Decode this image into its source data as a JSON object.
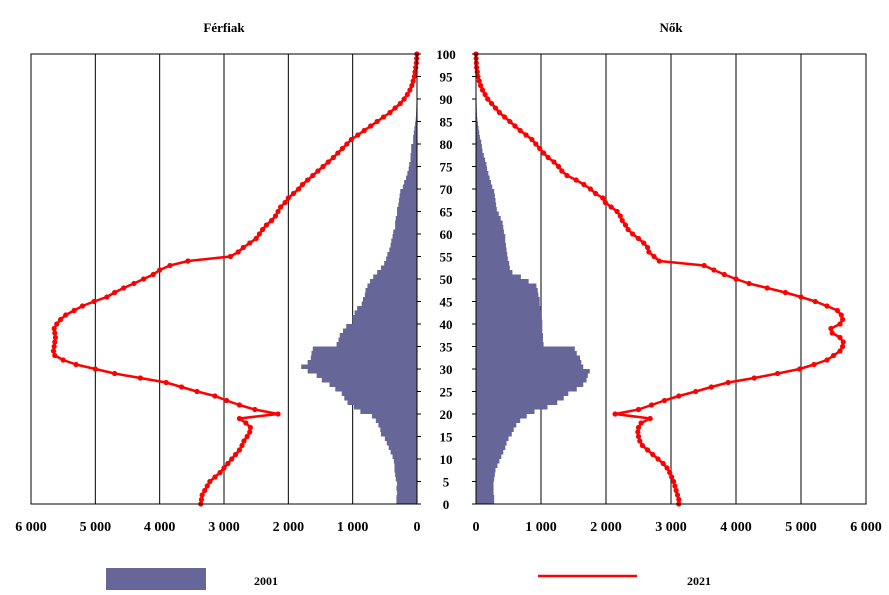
{
  "chart_data": {
    "type": "population-pyramid",
    "panels": [
      {
        "title": "Férfiak",
        "side": "left"
      },
      {
        "title": "Nők",
        "side": "right"
      }
    ],
    "x_ticks_left": [
      "6 000",
      "5 000",
      "4 000",
      "3 000",
      "2 000",
      "1 000",
      "0"
    ],
    "x_ticks_right": [
      "0",
      "1 000",
      "2 000",
      "3 000",
      "4 000",
      "5 000",
      "6 000"
    ],
    "xlim": [
      0,
      6000
    ],
    "age_ticks": [
      "0",
      "5",
      "10",
      "15",
      "20",
      "25",
      "30",
      "35",
      "40",
      "45",
      "50",
      "55",
      "60",
      "65",
      "70",
      "75",
      "80",
      "85",
      "90",
      "95",
      "100"
    ],
    "ylim": [
      0,
      100
    ],
    "grid": "vertical",
    "legend": [
      {
        "label": "2001",
        "kind": "bar",
        "color": "#666699"
      },
      {
        "label": "2021",
        "kind": "line",
        "color": "#ff0000"
      }
    ],
    "series": [
      {
        "name": "2001",
        "kind": "bar",
        "color": "#666699",
        "ages": [
          0,
          1,
          2,
          3,
          4,
          5,
          6,
          7,
          8,
          9,
          10,
          11,
          12,
          13,
          14,
          15,
          16,
          17,
          18,
          19,
          20,
          21,
          22,
          23,
          24,
          25,
          26,
          27,
          28,
          29,
          30,
          31,
          32,
          33,
          34,
          35,
          36,
          37,
          38,
          39,
          40,
          41,
          42,
          43,
          44,
          45,
          46,
          47,
          48,
          49,
          50,
          51,
          52,
          53,
          54,
          55,
          56,
          57,
          58,
          59,
          60,
          61,
          62,
          63,
          64,
          65,
          66,
          67,
          68,
          69,
          70,
          71,
          72,
          73,
          74,
          75,
          76,
          77,
          78,
          79,
          80,
          81,
          82,
          83,
          84,
          85,
          86,
          87,
          88,
          89,
          90,
          91,
          92,
          93,
          94,
          95,
          96,
          97,
          98,
          99,
          100
        ],
        "male": [
          320,
          320,
          310,
          320,
          310,
          330,
          340,
          350,
          350,
          360,
          380,
          410,
          440,
          470,
          500,
          560,
          570,
          600,
          640,
          700,
          880,
          980,
          1080,
          1130,
          1170,
          1270,
          1360,
          1480,
          1560,
          1700,
          1800,
          1700,
          1650,
          1640,
          1620,
          1250,
          1220,
          1200,
          1150,
          1100,
          1000,
          1000,
          970,
          930,
          860,
          840,
          810,
          800,
          770,
          730,
          680,
          620,
          560,
          510,
          480,
          460,
          430,
          410,
          400,
          380,
          370,
          340,
          340,
          330,
          310,
          310,
          290,
          280,
          270,
          260,
          220,
          200,
          170,
          150,
          130,
          120,
          100,
          100,
          90,
          90,
          60,
          60,
          50,
          40,
          30,
          20,
          15,
          12,
          10,
          8,
          6,
          4,
          3,
          2,
          1,
          1,
          0,
          0,
          0,
          0,
          0
        ],
        "female": [
          280,
          280,
          270,
          270,
          270,
          280,
          290,
          300,
          330,
          360,
          390,
          420,
          450,
          470,
          500,
          550,
          580,
          620,
          680,
          780,
          900,
          1100,
          1250,
          1350,
          1420,
          1550,
          1650,
          1700,
          1720,
          1750,
          1650,
          1620,
          1600,
          1550,
          1520,
          1040,
          1030,
          1030,
          1020,
          1020,
          1020,
          1000,
          1000,
          990,
          980,
          980,
          960,
          950,
          930,
          810,
          690,
          560,
          520,
          510,
          490,
          480,
          470,
          460,
          450,
          450,
          430,
          420,
          410,
          380,
          350,
          320,
          310,
          300,
          290,
          280,
          250,
          230,
          210,
          190,
          170,
          160,
          140,
          120,
          100,
          90,
          80,
          60,
          50,
          40,
          30,
          20,
          15,
          12,
          10,
          8,
          6,
          4,
          3,
          2,
          1,
          1,
          0,
          0,
          0,
          0,
          0
        ]
      },
      {
        "name": "2021",
        "kind": "line",
        "color": "#ff0000",
        "ages": [
          0,
          1,
          2,
          3,
          4,
          5,
          6,
          7,
          8,
          9,
          10,
          11,
          12,
          13,
          14,
          15,
          16,
          17,
          18,
          19,
          20,
          21,
          22,
          23,
          24,
          25,
          26,
          27,
          28,
          29,
          30,
          31,
          32,
          33,
          34,
          35,
          36,
          37,
          38,
          39,
          40,
          41,
          42,
          43,
          44,
          45,
          46,
          47,
          48,
          49,
          50,
          51,
          52,
          53,
          54,
          55,
          56,
          57,
          58,
          59,
          60,
          61,
          62,
          63,
          64,
          65,
          66,
          67,
          68,
          69,
          70,
          71,
          72,
          73,
          74,
          75,
          76,
          77,
          78,
          79,
          80,
          81,
          82,
          83,
          84,
          85,
          86,
          87,
          88,
          89,
          90,
          91,
          92,
          93,
          94,
          95,
          96,
          97,
          98,
          99,
          100
        ],
        "male": [
          3360,
          3350,
          3340,
          3300,
          3260,
          3220,
          3140,
          3060,
          3000,
          2940,
          2880,
          2820,
          2760,
          2720,
          2690,
          2640,
          2600,
          2590,
          2660,
          2760,
          2160,
          2520,
          2760,
          2960,
          3140,
          3420,
          3660,
          3900,
          4300,
          4700,
          5000,
          5300,
          5500,
          5630,
          5650,
          5640,
          5630,
          5620,
          5630,
          5640,
          5600,
          5540,
          5460,
          5330,
          5200,
          5020,
          4820,
          4700,
          4560,
          4400,
          4250,
          4100,
          4000,
          3840,
          3560,
          2900,
          2780,
          2700,
          2600,
          2500,
          2450,
          2400,
          2340,
          2260,
          2200,
          2160,
          2120,
          2050,
          2000,
          1920,
          1840,
          1780,
          1700,
          1620,
          1540,
          1460,
          1380,
          1300,
          1230,
          1160,
          1090,
          1020,
          920,
          820,
          720,
          620,
          520,
          420,
          340,
          260,
          200,
          150,
          110,
          80,
          60,
          40,
          30,
          20,
          10,
          5,
          2
        ],
        "female": [
          3120,
          3120,
          3100,
          3080,
          3060,
          3040,
          3010,
          2980,
          2940,
          2880,
          2800,
          2720,
          2640,
          2560,
          2520,
          2500,
          2490,
          2500,
          2540,
          2680,
          2140,
          2500,
          2700,
          2900,
          3120,
          3380,
          3620,
          3880,
          4280,
          4640,
          4980,
          5200,
          5400,
          5500,
          5600,
          5640,
          5650,
          5600,
          5480,
          5460,
          5600,
          5640,
          5620,
          5560,
          5400,
          5220,
          5000,
          4760,
          4480,
          4200,
          4000,
          3820,
          3660,
          3510,
          2820,
          2740,
          2660,
          2640,
          2580,
          2500,
          2410,
          2340,
          2300,
          2250,
          2220,
          2170,
          2080,
          1990,
          1950,
          1840,
          1760,
          1660,
          1540,
          1400,
          1320,
          1270,
          1200,
          1110,
          1040,
          980,
          920,
          860,
          770,
          680,
          600,
          520,
          440,
          360,
          300,
          240,
          180,
          140,
          100,
          70,
          50,
          30,
          20,
          10,
          5,
          2,
          0
        ]
      }
    ]
  }
}
